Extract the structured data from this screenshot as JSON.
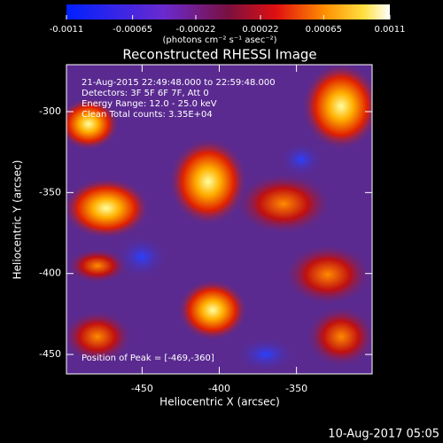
{
  "chart_data": {
    "type": "image",
    "title": "Reconstructed RHESSI Image",
    "x_label": "Heliocentric X (arcsec)",
    "y_label": "Heliocentric Y (arcsec)",
    "xlim": [
      -499,
      -301
    ],
    "xticks": [
      -450,
      -400,
      -350
    ],
    "ylim": [
      -462,
      -271
    ],
    "yticks": [
      -450,
      -400,
      -350,
      -300
    ],
    "colorbar": {
      "lim": [
        -0.0011,
        0.0011
      ],
      "ticks": [
        -0.0011,
        -0.00065,
        -0.00022,
        0.00022,
        0.00065,
        0.0011
      ],
      "units": "(photons cm⁻² s⁻¹ asec⁻²)"
    },
    "annotations": [
      "21-Aug-2015 22:49:48.000 to 22:59:48.000",
      "Detectors: 3F 5F 6F 7F, Att 0",
      "Energy Range: 12.0 - 25.0 keV",
      "Clean     Total counts: 3.35E+04",
      "Position of Peak = [-469,-360]"
    ],
    "footer": "10-Aug-2017 05:05"
  }
}
